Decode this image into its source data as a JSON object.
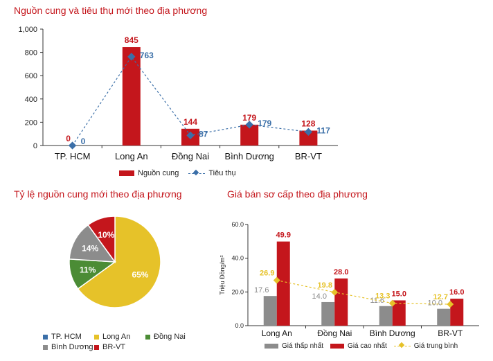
{
  "chart_data": [
    {
      "type": "bar",
      "title": "Nguồn cung và tiêu thụ mới theo địa phương",
      "categories": [
        "TP. HCM",
        "Long An",
        "Đồng Nai",
        "Bình Dương",
        "BR-VT"
      ],
      "ylim": [
        0,
        1000
      ],
      "yticks": [
        "0",
        "200",
        "400",
        "600",
        "800",
        "1,000"
      ],
      "series": [
        {
          "name": "Nguồn cung",
          "kind": "bar",
          "color": "#c4161c",
          "values": [
            0,
            845,
            144,
            179,
            128
          ]
        },
        {
          "name": "Tiêu thụ",
          "kind": "line",
          "color": "#3b6fa8",
          "values": [
            0,
            763,
            87,
            179,
            117
          ]
        }
      ],
      "legend": "bottom"
    },
    {
      "type": "pie",
      "title": "Tỷ lệ nguồn cung mới theo địa phương",
      "slices": [
        {
          "name": "TP. HCM",
          "value": 0,
          "label": "",
          "color": "#3b6fa8"
        },
        {
          "name": "Long An",
          "value": 65,
          "label": "65%",
          "color": "#e6c229"
        },
        {
          "name": "Đồng Nai",
          "value": 11,
          "label": "11%",
          "color": "#4b8c35"
        },
        {
          "name": "Bình Dương",
          "value": 14,
          "label": "14%",
          "color": "#8c8c8c"
        },
        {
          "name": "BR-VT",
          "value": 10,
          "label": "10%",
          "color": "#c4161c"
        }
      ],
      "legend": "bottom"
    },
    {
      "type": "bar",
      "title": "Giá bán sơ cấp theo địa phương",
      "ylabel": "Triệu Đồng/m²",
      "categories": [
        "Long An",
        "Đồng Nai",
        "Bình Dương",
        "BR-VT"
      ],
      "ylim": [
        0,
        60
      ],
      "yticks": [
        "0.0",
        "20.0",
        "40.0",
        "60.0"
      ],
      "series": [
        {
          "name": "Giá thấp nhất",
          "kind": "bar",
          "color": "#8c8c8c",
          "values": [
            17.6,
            14.0,
            11.6,
            10.0
          ],
          "labels": [
            "17.6",
            "14.0",
            "11.6",
            "10.0"
          ]
        },
        {
          "name": "Giá cao nhất",
          "kind": "bar",
          "color": "#c4161c",
          "values": [
            49.9,
            28.0,
            15.0,
            16.0
          ],
          "labels": [
            "49.9",
            "28.0",
            "15.0",
            "16.0"
          ]
        },
        {
          "name": "Giá trung bình",
          "kind": "line",
          "color": "#e6c229",
          "values": [
            26.9,
            19.8,
            13.3,
            12.7
          ],
          "labels": [
            "26.9",
            "19.8",
            "13.3",
            "12.7"
          ]
        }
      ],
      "legend": "bottom"
    }
  ]
}
